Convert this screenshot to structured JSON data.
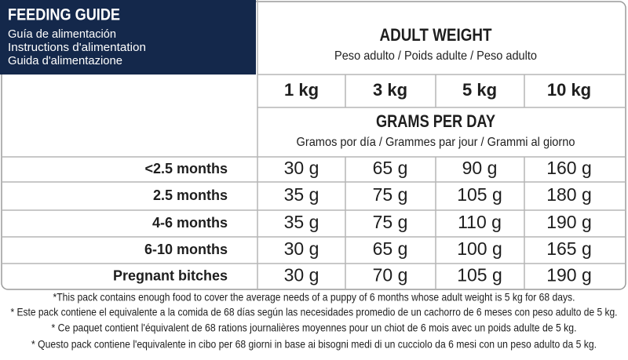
{
  "header": {
    "title": "FEEDING GUIDE",
    "subtitles": [
      "Guía de alimentación",
      "Instructions d'alimentation",
      "Guida d'alimentazione"
    ]
  },
  "table": {
    "weight_heading": "ADULT WEIGHT",
    "weight_subheading": "Peso adulto / Poids adulte / Peso adulto",
    "weights": [
      "1 kg",
      "3 kg",
      "5 kg",
      "10 kg"
    ],
    "amount_heading": "GRAMS PER DAY",
    "amount_subheading": "Gramos por día / Grammes par jour / Grammi al giorno",
    "rows": [
      {
        "label": "<2.5 months",
        "values": [
          "30 g",
          "65 g",
          "90 g",
          "160 g"
        ]
      },
      {
        "label": "2.5 months",
        "values": [
          "35 g",
          "75 g",
          "105 g",
          "180 g"
        ]
      },
      {
        "label": "4-6 months",
        "values": [
          "35 g",
          "75 g",
          "110 g",
          "190 g"
        ]
      },
      {
        "label": "6-10 months",
        "values": [
          "30 g",
          "65 g",
          "100 g",
          "165 g"
        ]
      },
      {
        "label": "Pregnant bitches",
        "values": [
          "30 g",
          "70 g",
          "105 g",
          "190 g"
        ]
      }
    ]
  },
  "footnotes": [
    "*This pack contains enough food to cover the average needs of a puppy of 6 months whose adult weight is 5 kg for 68 days.",
    "* Este pack contiene el equivalente a la comida de 68 días según las necesidades promedio de un cachorro de 6 meses con peso adulto de 5 kg.",
    "* Ce paquet contient l'équivalent de 68 rations journalières moyennes pour un chiot de 6 mois avec un poids adulte de 5 kg.",
    "* Questo pack contiene l'equivalente in cibo per 68 giorni in base ai bisogni medi di un cucciolo da 6 mesi con un peso adulto da 5 kg."
  ]
}
